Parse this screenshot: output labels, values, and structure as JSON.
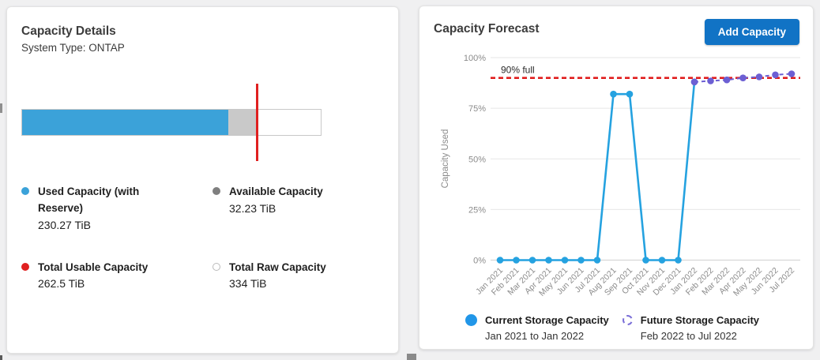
{
  "capacity_details": {
    "title": "Capacity Details",
    "subtitle": "System Type: ONTAP",
    "values": {
      "used_tib": 230.27,
      "available_tib": 32.23,
      "total_usable_tib": 262.5,
      "total_raw_tib": 334
    },
    "bar_colors": {
      "used": "#3ba2d9",
      "available": "#c9c9c9",
      "usable_marker": "#e02020",
      "raw_outline_border": "#c8c8c8"
    },
    "legend": [
      {
        "label": "Used Capacity (with Reserve)",
        "value": "230.27 TiB",
        "color": "#3ba2d9",
        "marker": "filled"
      },
      {
        "label": "Available Capacity",
        "value": "32.23 TiB",
        "color": "#7f7f7f",
        "marker": "filled"
      },
      {
        "label": "Total Usable Capacity",
        "value": "262.5 TiB",
        "color": "#e02020",
        "marker": "filled"
      },
      {
        "label": "Total Raw Capacity",
        "value": "334 TiB",
        "color": "#ffffff",
        "marker": "outline"
      }
    ]
  },
  "capacity_forecast": {
    "title": "Capacity Forecast",
    "button_label": "Add Capacity",
    "button_color": "#1173c5",
    "legend": [
      {
        "name": "Current Storage Capacity",
        "range": "Jan 2021 to Jan 2022",
        "color": "#2196e8",
        "marker": "filled"
      },
      {
        "name": "Future Storage Capacity",
        "range": "Feb 2022 to Jul 2022",
        "color": "#7b6fd8",
        "marker": "dashed-outline"
      }
    ]
  },
  "chart_data": {
    "type": "line",
    "title": "Capacity Forecast",
    "ylabel": "Capacity Used",
    "xlabel": "",
    "ylim": [
      0,
      100
    ],
    "yticks": [
      "0%",
      "25%",
      "50%",
      "75%",
      "100%"
    ],
    "ytick_values": [
      0,
      25,
      50,
      75,
      100
    ],
    "grid": true,
    "legend_position": "bottom",
    "threshold": {
      "value": 90,
      "label": "90% full",
      "color": "#e01e1e",
      "style": "dashed"
    },
    "categories": [
      "Jan 2021",
      "Feb 2021",
      "Mar 2021",
      "Apr 2021",
      "May 2021",
      "Jun 2021",
      "Jul 2021",
      "Aug 2021",
      "Sep 2021",
      "Oct 2021",
      "Nov 2021",
      "Dec 2021",
      "Jan 2022",
      "Feb 2022",
      "Mar 2022",
      "Apr 2022",
      "May 2022",
      "Jun 2022",
      "Jul 2022"
    ],
    "series": [
      {
        "name": "Current Storage Capacity",
        "color": "#25a2e0",
        "style": "solid",
        "values": [
          0,
          0,
          0,
          0,
          0,
          0,
          0,
          82,
          82,
          0,
          0,
          0,
          88,
          null,
          null,
          null,
          null,
          null,
          null
        ]
      },
      {
        "name": "Future Storage Capacity",
        "color": "#6c5fd3",
        "style": "dashed",
        "values": [
          null,
          null,
          null,
          null,
          null,
          null,
          null,
          null,
          null,
          null,
          null,
          null,
          88,
          88.5,
          89,
          90,
          90.5,
          91.5,
          92
        ]
      }
    ]
  }
}
